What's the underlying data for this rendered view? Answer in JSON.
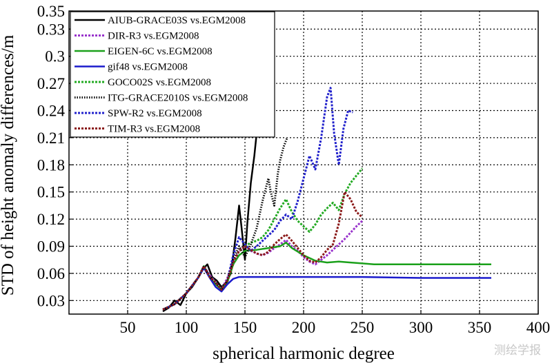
{
  "watermark": "测绘学报",
  "chart_data": {
    "type": "line",
    "title": "",
    "xlabel": "spherical harmonic degree",
    "ylabel": "STD of height anomaly differences/m",
    "xlim": [
      0,
      400
    ],
    "ylim": [
      0.015,
      0.35
    ],
    "xticks": [
      50,
      100,
      150,
      200,
      250,
      300,
      350,
      400
    ],
    "yticks": [
      0.03,
      0.06,
      0.09,
      0.12,
      0.15,
      0.18,
      0.21,
      0.24,
      0.27,
      0.3,
      0.33,
      0.35
    ],
    "grid": true,
    "legend_position": "top-left",
    "series": [
      {
        "name": "AIUB-GRACE03S vs.EGM2008",
        "color": "#000000",
        "style": "solid",
        "x": [
          80,
          85,
          90,
          95,
          100,
          105,
          110,
          115,
          118,
          122,
          126,
          130,
          134,
          138,
          142,
          145,
          147,
          150,
          152,
          155,
          158,
          160
        ],
        "y": [
          0.018,
          0.022,
          0.03,
          0.025,
          0.038,
          0.045,
          0.055,
          0.066,
          0.07,
          0.056,
          0.052,
          0.045,
          0.05,
          0.06,
          0.1,
          0.135,
          0.112,
          0.075,
          0.115,
          0.16,
          0.19,
          0.215
        ]
      },
      {
        "name": "DIR-R3 vs.EGM2008",
        "color": "#9933cc",
        "style": "dashed",
        "x": [
          80,
          90,
          100,
          110,
          115,
          120,
          125,
          130,
          135,
          140,
          145,
          150,
          155,
          160,
          165,
          170,
          175,
          180,
          185,
          190,
          195,
          200,
          205,
          210,
          215,
          220,
          225,
          230,
          235,
          240,
          245,
          250
        ],
        "y": [
          0.02,
          0.026,
          0.038,
          0.055,
          0.068,
          0.058,
          0.05,
          0.042,
          0.055,
          0.072,
          0.085,
          0.09,
          0.085,
          0.082,
          0.08,
          0.083,
          0.088,
          0.092,
          0.097,
          0.09,
          0.085,
          0.078,
          0.073,
          0.07,
          0.075,
          0.08,
          0.086,
          0.092,
          0.098,
          0.105,
          0.112,
          0.118
        ]
      },
      {
        "name": "EIGEN-6C vs.EGM2008",
        "color": "#1aa01a",
        "style": "solid",
        "x": [
          80,
          90,
          100,
          110,
          115,
          120,
          125,
          130,
          135,
          140,
          145,
          150,
          160,
          170,
          180,
          185,
          190,
          200,
          210,
          220,
          230,
          240,
          250,
          260,
          280,
          300,
          320,
          340,
          360
        ],
        "y": [
          0.02,
          0.026,
          0.038,
          0.055,
          0.068,
          0.056,
          0.048,
          0.042,
          0.05,
          0.07,
          0.08,
          0.085,
          0.086,
          0.088,
          0.09,
          0.094,
          0.088,
          0.08,
          0.074,
          0.072,
          0.073,
          0.072,
          0.071,
          0.07,
          0.07,
          0.07,
          0.07,
          0.07,
          0.07
        ]
      },
      {
        "name": "gif48 vs.EGM2008",
        "color": "#1a1acc",
        "style": "solid",
        "x": [
          80,
          90,
          100,
          110,
          115,
          120,
          125,
          130,
          135,
          140,
          145,
          160,
          200,
          250,
          300,
          360
        ],
        "y": [
          0.02,
          0.026,
          0.038,
          0.055,
          0.066,
          0.055,
          0.045,
          0.04,
          0.048,
          0.054,
          0.056,
          0.056,
          0.056,
          0.056,
          0.055,
          0.055
        ]
      },
      {
        "name": "GOCO02S vs.EGM2008",
        "color": "#22aa22",
        "style": "dashed",
        "x": [
          80,
          90,
          100,
          110,
          115,
          120,
          125,
          130,
          135,
          140,
          145,
          150,
          155,
          160,
          165,
          170,
          175,
          180,
          185,
          190,
          195,
          200,
          205,
          210,
          215,
          220,
          225,
          230,
          235,
          240,
          245,
          250
        ],
        "y": [
          0.02,
          0.026,
          0.038,
          0.055,
          0.068,
          0.056,
          0.05,
          0.042,
          0.052,
          0.07,
          0.085,
          0.09,
          0.094,
          0.096,
          0.1,
          0.108,
          0.12,
          0.132,
          0.142,
          0.128,
          0.118,
          0.112,
          0.106,
          0.114,
          0.125,
          0.132,
          0.138,
          0.13,
          0.148,
          0.16,
          0.168,
          0.176
        ]
      },
      {
        "name": "ITG-GRACE2010S vs.EGM2008",
        "color": "#000000",
        "style": "dotted",
        "x": [
          80,
          90,
          100,
          110,
          115,
          120,
          125,
          130,
          135,
          140,
          145,
          150,
          155,
          160,
          165,
          170,
          172,
          175,
          178,
          180,
          183,
          186
        ],
        "y": [
          0.02,
          0.026,
          0.038,
          0.055,
          0.068,
          0.056,
          0.05,
          0.042,
          0.052,
          0.075,
          0.09,
          0.078,
          0.092,
          0.11,
          0.14,
          0.165,
          0.15,
          0.135,
          0.17,
          0.185,
          0.2,
          0.21
        ]
      },
      {
        "name": "SPW-R2 vs.EGM2008",
        "color": "#2222cc",
        "style": "dashed",
        "x": [
          80,
          90,
          100,
          110,
          115,
          120,
          125,
          130,
          135,
          140,
          145,
          150,
          155,
          160,
          165,
          170,
          175,
          180,
          185,
          190,
          195,
          200,
          205,
          210,
          215,
          220,
          223,
          226,
          230,
          234,
          238,
          242
        ],
        "y": [
          0.02,
          0.026,
          0.038,
          0.055,
          0.068,
          0.056,
          0.05,
          0.042,
          0.052,
          0.08,
          0.1,
          0.092,
          0.085,
          0.09,
          0.096,
          0.102,
          0.108,
          0.118,
          0.125,
          0.12,
          0.14,
          0.165,
          0.19,
          0.175,
          0.21,
          0.255,
          0.265,
          0.215,
          0.18,
          0.22,
          0.24,
          0.238
        ]
      },
      {
        "name": "TIM-R3 vs.EGM2008",
        "color": "#8b1a1a",
        "style": "dashed",
        "x": [
          80,
          90,
          100,
          110,
          115,
          120,
          125,
          130,
          135,
          140,
          145,
          150,
          155,
          160,
          165,
          170,
          175,
          180,
          185,
          190,
          195,
          200,
          205,
          210,
          215,
          220,
          225,
          230,
          235,
          240,
          245,
          250
        ],
        "y": [
          0.02,
          0.026,
          0.038,
          0.055,
          0.068,
          0.056,
          0.05,
          0.042,
          0.052,
          0.072,
          0.085,
          0.09,
          0.086,
          0.082,
          0.08,
          0.084,
          0.092,
          0.098,
          0.103,
          0.096,
          0.088,
          0.08,
          0.074,
          0.072,
          0.078,
          0.086,
          0.092,
          0.115,
          0.15,
          0.142,
          0.128,
          0.122
        ]
      }
    ]
  }
}
